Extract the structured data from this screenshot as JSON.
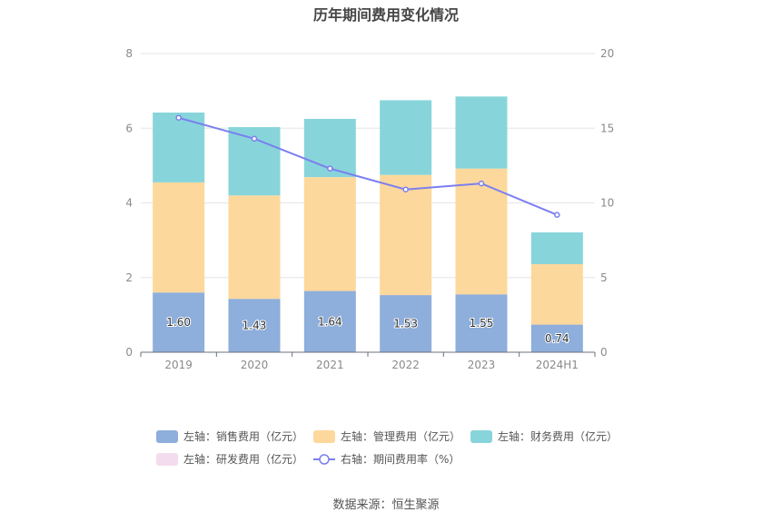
{
  "title": "历年期间费用变化情况",
  "source": "数据来源：恒生聚源",
  "chart_data": {
    "type": "bar",
    "stacked": true,
    "categories": [
      "2019",
      "2020",
      "2021",
      "2022",
      "2023",
      "2024H1"
    ],
    "y_left": {
      "ylim": [
        0,
        8
      ],
      "ticks": [
        "0",
        "2",
        "4",
        "6",
        "8"
      ]
    },
    "y_right": {
      "ylim": [
        0,
        20
      ],
      "ticks": [
        "0",
        "5",
        "10",
        "15",
        "20"
      ]
    },
    "grid": true,
    "legend_position": "bottom",
    "series": [
      {
        "name": "左轴：销售费用（亿元）",
        "type": "bar",
        "axis": "left",
        "color": "#8eaedb",
        "values": [
          1.6,
          1.43,
          1.64,
          1.53,
          1.55,
          0.74
        ],
        "labels": [
          "1.60",
          "1.43",
          "1.64",
          "1.53",
          "1.55",
          "0.74"
        ]
      },
      {
        "name": "左轴：管理费用（亿元）",
        "type": "bar",
        "axis": "left",
        "color": "#fdd89c",
        "values": [
          2.95,
          2.77,
          3.05,
          3.22,
          3.37,
          1.62
        ]
      },
      {
        "name": "左轴：财务费用（亿元）",
        "type": "bar",
        "axis": "left",
        "color": "#87d5da",
        "values": [
          1.87,
          1.83,
          1.56,
          2.0,
          1.93,
          0.85
        ]
      },
      {
        "name": "左轴：研发费用（亿元）",
        "type": "bar",
        "axis": "left",
        "color": "#f3dcee",
        "values": [
          0,
          0,
          0,
          0,
          0,
          0
        ]
      },
      {
        "name": "右轴：期间费用率（%）",
        "type": "line",
        "axis": "right",
        "color": "#7b7ff0",
        "values": [
          15.7,
          14.3,
          12.3,
          10.9,
          11.3,
          9.2
        ]
      }
    ]
  }
}
